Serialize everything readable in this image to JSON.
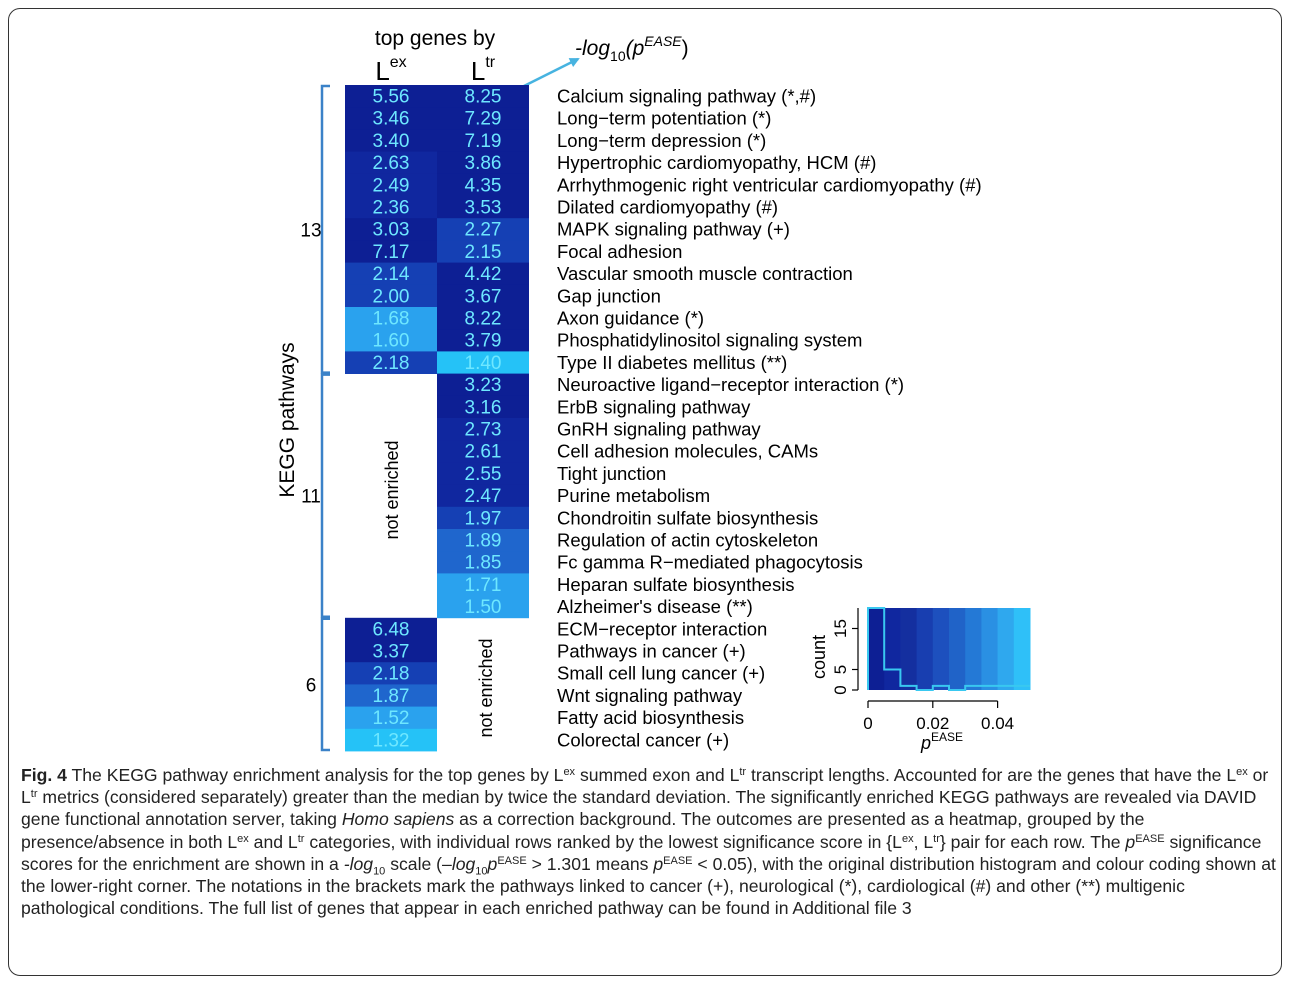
{
  "chart_data": {
    "type": "heatmap",
    "header": "top genes by",
    "columns": [
      {
        "base": "L",
        "sup": "ex"
      },
      {
        "base": "L",
        "sup": "tr"
      }
    ],
    "value_label": {
      "pre": "-log",
      "sub": "10",
      "mid": "(p",
      "sup": "EASE",
      "post": ")"
    },
    "y_group_axis": "KEGG pathways",
    "not_enriched_label": "not enriched",
    "groups": [
      {
        "count": "13",
        "start": 0,
        "end": 12
      },
      {
        "count": "11",
        "start": 13,
        "end": 23
      },
      {
        "count": "6",
        "start": 24,
        "end": 29
      }
    ],
    "rows": [
      {
        "label": "Calcium signaling pathway (*,#)",
        "ex": 5.56,
        "tr": 8.25
      },
      {
        "label": "Long−term potentiation (*)",
        "ex": 3.46,
        "tr": 7.29
      },
      {
        "label": "Long−term depression (*)",
        "ex": 3.4,
        "tr": 7.19
      },
      {
        "label": "Hypertrophic cardiomyopathy, HCM (#)",
        "ex": 2.63,
        "tr": 3.86
      },
      {
        "label": "Arrhythmogenic right ventricular cardiomyopathy (#)",
        "ex": 2.49,
        "tr": 4.35
      },
      {
        "label": "Dilated cardiomyopathy (#)",
        "ex": 2.36,
        "tr": 3.53
      },
      {
        "label": "MAPK signaling pathway (+)",
        "ex": 3.03,
        "tr": 2.27
      },
      {
        "label": "Focal adhesion",
        "ex": 7.17,
        "tr": 2.15
      },
      {
        "label": "Vascular smooth muscle contraction",
        "ex": 2.14,
        "tr": 4.42
      },
      {
        "label": "Gap junction",
        "ex": 2.0,
        "tr": 3.67
      },
      {
        "label": "Axon guidance (*)",
        "ex": 1.68,
        "tr": 8.22
      },
      {
        "label": "Phosphatidylinositol signaling system",
        "ex": 1.6,
        "tr": 3.79
      },
      {
        "label": "Type II diabetes mellitus (**)",
        "ex": 2.18,
        "tr": 1.4
      },
      {
        "label": "Neuroactive ligand−receptor interaction (*)",
        "ex": null,
        "tr": 3.23
      },
      {
        "label": "ErbB signaling pathway",
        "ex": null,
        "tr": 3.16
      },
      {
        "label": "GnRH signaling pathway",
        "ex": null,
        "tr": 2.73
      },
      {
        "label": "Cell adhesion molecules, CAMs",
        "ex": null,
        "tr": 2.61
      },
      {
        "label": "Tight junction",
        "ex": null,
        "tr": 2.55
      },
      {
        "label": "Purine metabolism",
        "ex": null,
        "tr": 2.47
      },
      {
        "label": "Chondroitin sulfate biosynthesis",
        "ex": null,
        "tr": 1.97
      },
      {
        "label": "Regulation of actin cytoskeleton",
        "ex": null,
        "tr": 1.89
      },
      {
        "label": "Fc gamma R−mediated phagocytosis",
        "ex": null,
        "tr": 1.85
      },
      {
        "label": "Heparan sulfate biosynthesis",
        "ex": null,
        "tr": 1.71
      },
      {
        "label": "Alzheimer's disease (**)",
        "ex": null,
        "tr": 1.5
      },
      {
        "label": "ECM−receptor interaction",
        "ex": 6.48,
        "tr": null
      },
      {
        "label": "Pathways in cancer (+)",
        "ex": 3.37,
        "tr": null
      },
      {
        "label": "Small cell lung cancer (+)",
        "ex": 2.18,
        "tr": null
      },
      {
        "label": "Wnt signaling pathway",
        "ex": 1.87,
        "tr": null
      },
      {
        "label": "Fatty acid biosynthesis",
        "ex": 1.52,
        "tr": null
      },
      {
        "label": "Colorectal cancer (+)",
        "ex": 1.32,
        "tr": null
      }
    ],
    "colors": {
      "scale": [
        "#0d1f94",
        "#10279f",
        "#1540b4",
        "#1f66cd",
        "#2aa2ee",
        "#25c2f7"
      ],
      "text": "#6ee7ff"
    },
    "inset_histogram": {
      "type": "histogram",
      "xlabel_base": "p",
      "xlabel_sup": "EASE",
      "ylabel": "count",
      "xlim": [
        0,
        0.05
      ],
      "ylim": [
        0,
        20
      ],
      "xticks": [
        "0",
        "0.02",
        "0.04"
      ],
      "yticks": [
        "0",
        "5",
        "15"
      ],
      "bins": [
        {
          "x0": 0.0,
          "x1": 0.005,
          "count": 20
        },
        {
          "x0": 0.005,
          "x1": 0.01,
          "count": 5
        },
        {
          "x0": 0.01,
          "x1": 0.015,
          "count": 1
        },
        {
          "x0": 0.015,
          "x1": 0.02,
          "count": 0
        },
        {
          "x0": 0.02,
          "x1": 0.025,
          "count": 1
        },
        {
          "x0": 0.025,
          "x1": 0.03,
          "count": 0
        },
        {
          "x0": 0.03,
          "x1": 0.035,
          "count": 1
        },
        {
          "x0": 0.035,
          "x1": 0.04,
          "count": 1
        },
        {
          "x0": 0.04,
          "x1": 0.045,
          "count": 1
        },
        {
          "x0": 0.045,
          "x1": 0.05,
          "count": 1
        }
      ],
      "band_colors": [
        "#0d1f94",
        "#10279f",
        "#142f9f",
        "#183eb0",
        "#1d50be",
        "#2063c8",
        "#2479d6",
        "#2a90e3",
        "#2fa8ee",
        "#2fc0f8"
      ]
    }
  },
  "caption": {
    "fig_label": "Fig. 4",
    "parts": [
      {
        "t": " The KEGG pathway enrichment analysis for the top genes by L"
      },
      {
        "sup": "ex"
      },
      {
        "t": " summed exon and L"
      },
      {
        "sup": "tr"
      },
      {
        "t": " transcript lengths. Accounted for are the genes that have the L"
      },
      {
        "sup": "ex"
      },
      {
        "t": " or L"
      },
      {
        "sup": "tr"
      },
      {
        "t": " metrics (considered separately) greater than the median by twice the standard deviation. The significantly enriched KEGG pathways are revealed via DAVID gene functional annotation server, taking "
      },
      {
        "i": "Homo sapiens"
      },
      {
        "t": " as a correction background. The outcomes are presented as a heatmap, grouped by the presence/absence in both L"
      },
      {
        "sup": "ex"
      },
      {
        "t": " and L"
      },
      {
        "sup": "tr"
      },
      {
        "t": " categories, with individual rows ranked by the lowest significance score in {L"
      },
      {
        "sup": "ex"
      },
      {
        "t": ", L"
      },
      {
        "sup": "tr"
      },
      {
        "t": "} pair for each row. The "
      },
      {
        "i": "p"
      },
      {
        "sup": "EASE"
      },
      {
        "t": " significance scores for the enrichment are shown in a "
      },
      {
        "i": "-log"
      },
      {
        "sub": "10"
      },
      {
        "t": " scale (–"
      },
      {
        "i": "log"
      },
      {
        "sub": "10"
      },
      {
        "i": "p"
      },
      {
        "sup": "EASE"
      },
      {
        "t": " > 1.301 means "
      },
      {
        "i": "p"
      },
      {
        "sup": "EASE"
      },
      {
        "t": " < 0.05), with the original distribution histogram and colour coding shown at the lower-right corner. The notations in the brackets mark the pathways linked to cancer (+), neurological (*), cardiological (#) and other (**) multigenic pathological conditions. The full list of genes that appear in each enriched pathway can be found in Additional file 3"
      }
    ]
  }
}
